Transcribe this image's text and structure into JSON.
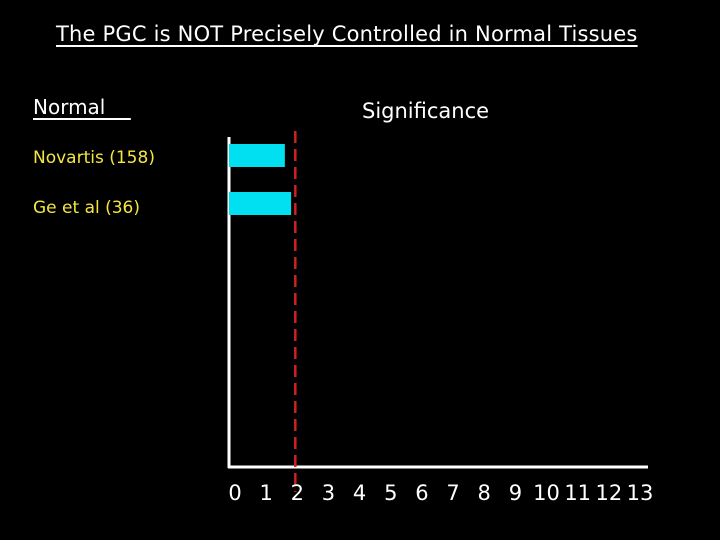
{
  "slide": {
    "title": "The PGC is NOT Precisely Controlled in Normal Tissues",
    "section_label": "Normal    ",
    "axis_title": "Significance"
  },
  "colors": {
    "background": "#000000",
    "bar": "#00e0f0",
    "threshold_line": "#cc2222",
    "category_label": "#f5e642",
    "axis": "#ffffff"
  },
  "chart_data": {
    "type": "bar",
    "orientation": "horizontal",
    "categories": [
      "Novartis (158)",
      "Ge et al (36)"
    ],
    "values": [
      1.6,
      1.8
    ],
    "xlim": [
      0,
      13
    ],
    "xticks": [
      "0",
      "1",
      "2",
      "3",
      "4",
      "5",
      "6",
      "7",
      "8",
      "9",
      "10",
      "11",
      "12",
      "13"
    ],
    "threshold": 2,
    "xlabel": "Significance",
    "grid": false,
    "legend": "none"
  }
}
